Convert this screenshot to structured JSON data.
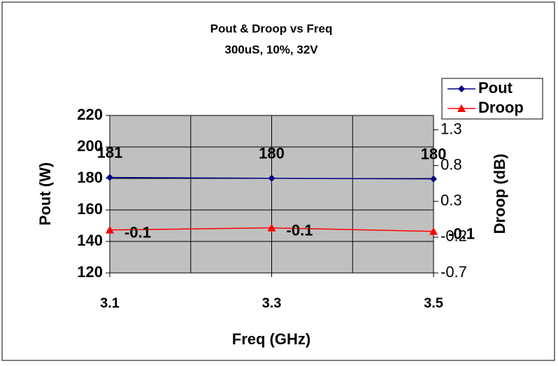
{
  "chart_data": {
    "type": "line",
    "title": "Pout & Droop vs Freq",
    "subtitle": "300uS, 10%, 32V",
    "x_label": "Freq (GHz)",
    "y_label": "Pout (W)",
    "y2_label": "Droop (dB)",
    "x": [
      3.1,
      3.3,
      3.5
    ],
    "xlim": [
      3.1,
      3.5
    ],
    "xticks": [
      3.1,
      3.3,
      3.5
    ],
    "x_minor_grid": [
      3.2,
      3.4
    ],
    "ylim": [
      120,
      220
    ],
    "yticks": [
      120,
      140,
      160,
      180,
      200,
      220
    ],
    "y2lim": [
      -0.7,
      1.5
    ],
    "y2ticks": [
      -0.7,
      -0.2,
      0.3,
      0.8,
      1.3
    ],
    "grid": true,
    "legend": "upper right",
    "series": [
      {
        "name": "Pout",
        "color": "#000080",
        "marker": "diamond",
        "values": [
          180.6,
          180.1,
          179.7
        ],
        "value_labels": [
          "181",
          "180",
          "180"
        ]
      },
      {
        "name": "Droop",
        "color": "#ff0000",
        "marker": "triangle",
        "axis": "y2",
        "values": [
          -0.1,
          -0.07,
          -0.12
        ],
        "value_labels": [
          "-0.1",
          "-0.1",
          "-0.1"
        ]
      }
    ]
  }
}
